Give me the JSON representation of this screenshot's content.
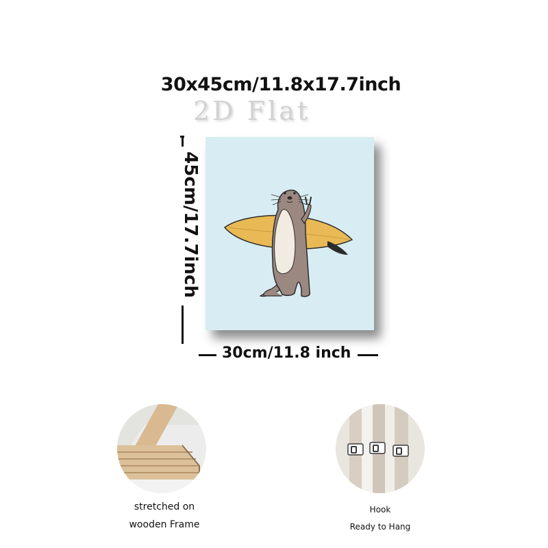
{
  "dimensions": {
    "top_label": "30x45cm/11.8x17.7inch",
    "side_label": "45cm/17.7inch",
    "bottom_label": "30cm/11.8 inch"
  },
  "watermark": "2D Flat",
  "colors": {
    "canvas_bg": "#d8ecf3",
    "otter_body": "#9b8880",
    "otter_belly": "#f2ebe1",
    "surfboard": "#e8b955",
    "outline": "#2c2c2c"
  },
  "features": [
    {
      "caption_line1": "stretched on",
      "caption_line2": "wooden Frame",
      "icon": "wooden-frame-corner"
    },
    {
      "caption_line1": "Hook",
      "caption_line2": "Ready to Hang",
      "icon": "hanging-hook"
    }
  ]
}
